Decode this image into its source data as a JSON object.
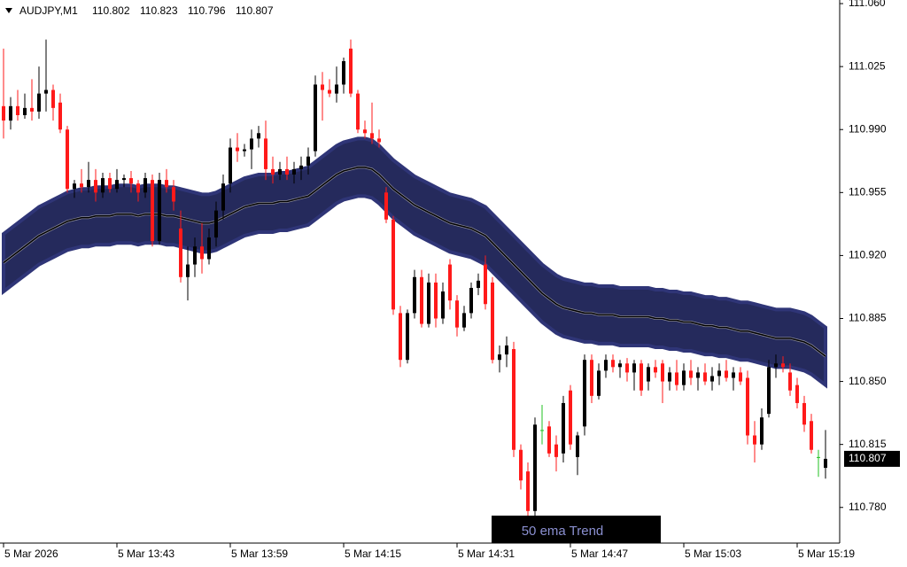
{
  "chart_data": {
    "type": "candlestick",
    "title": "AUDJPY,M1",
    "indicator_label": "50 ema Trend",
    "up_color": "#000000",
    "down_color": "#ff1a1a",
    "doji_color": "#22c022",
    "band_color": "#252a5c",
    "ylim": [
      110.772,
      111.062
    ],
    "yticks": [
      {
        "value": 111.06,
        "label": "111.060"
      },
      111.025,
      {
        "value": 110.99,
        "label": "110.990"
      },
      110.955,
      {
        "value": 110.92,
        "label": "110.920"
      },
      110.885,
      {
        "value": 110.85,
        "label": "110.850"
      },
      110.815,
      {
        "value": 110.78,
        "label": "110.780"
      }
    ],
    "categories": [
      "5 Mar 2026",
      null,
      null,
      null,
      null,
      null,
      null,
      null,
      null,
      null,
      null,
      null,
      null,
      null,
      null,
      null,
      "5 Mar 13:43",
      null,
      null,
      null,
      null,
      null,
      null,
      null,
      null,
      null,
      null,
      null,
      null,
      null,
      null,
      null,
      "5 Mar 13:59",
      null,
      null,
      null,
      null,
      null,
      null,
      null,
      null,
      null,
      null,
      null,
      null,
      null,
      null,
      null,
      "5 Mar 14:15",
      null,
      null,
      null,
      null,
      null,
      null,
      null,
      null,
      null,
      null,
      null,
      null,
      null,
      null,
      null,
      "5 Mar 14:31",
      null,
      null,
      null,
      null,
      null,
      null,
      null,
      null,
      null,
      null,
      null,
      null,
      null,
      null,
      null,
      "5 Mar 14:47",
      null,
      null,
      null,
      null,
      null,
      null,
      null,
      null,
      null,
      null,
      null,
      null,
      null,
      null,
      null,
      "5 Mar 15:03",
      null,
      null,
      null,
      null,
      null,
      null,
      null,
      null,
      null,
      null,
      null,
      null,
      null,
      null,
      null,
      "5 Mar 15:19",
      null,
      null,
      null,
      null
    ],
    "ohlc": [
      [
        111.003,
        111.035,
        110.985,
        110.995
      ],
      [
        110.995,
        111.008,
        110.99,
        111.003
      ],
      [
        111.003,
        111.012,
        110.995,
        110.998
      ],
      [
        110.998,
        111.01,
        110.996,
        111.002
      ],
      [
        111.002,
        111.018,
        110.995,
        111.0
      ],
      [
        111.0,
        111.025,
        110.996,
        111.01
      ],
      [
        111.01,
        111.04,
        111.0,
        111.012
      ],
      [
        111.012,
        111.015,
        110.995,
        111.002
      ],
      [
        111.005,
        111.01,
        110.988,
        110.99
      ],
      [
        110.99,
        110.992,
        110.955,
        110.957
      ],
      [
        110.957,
        110.962,
        110.952,
        110.96
      ],
      [
        110.96,
        110.968,
        110.955,
        110.958
      ],
      [
        110.958,
        110.972,
        110.955,
        110.962
      ],
      [
        110.962,
        110.968,
        110.95,
        110.955
      ],
      [
        110.955,
        110.966,
        110.952,
        110.963
      ],
      [
        110.963,
        110.966,
        110.955,
        110.957
      ],
      [
        110.957,
        110.968,
        110.955,
        110.962
      ],
      [
        110.962,
        110.965,
        110.958,
        110.963
      ],
      [
        110.963,
        110.967,
        110.955,
        110.96
      ],
      [
        110.96,
        110.962,
        110.95,
        110.955
      ],
      [
        110.955,
        110.966,
        110.952,
        110.963
      ],
      [
        110.962,
        110.965,
        110.925,
        110.928
      ],
      [
        110.928,
        110.966,
        110.926,
        110.962
      ],
      [
        110.962,
        110.968,
        110.955,
        110.958
      ],
      [
        110.958,
        110.962,
        110.945,
        110.95
      ],
      [
        110.935,
        110.945,
        110.905,
        110.908
      ],
      [
        110.908,
        110.925,
        110.895,
        110.915
      ],
      [
        110.915,
        110.93,
        110.908,
        110.925
      ],
      [
        110.925,
        110.938,
        110.91,
        110.918
      ],
      [
        110.918,
        110.935,
        110.915,
        110.93
      ],
      [
        110.93,
        110.95,
        110.925,
        110.945
      ],
      [
        110.945,
        110.965,
        110.94,
        110.96
      ],
      [
        110.96,
        110.985,
        110.955,
        110.98
      ],
      [
        110.98,
        110.988,
        110.972,
        110.978
      ],
      [
        110.978,
        110.982,
        110.975,
        110.979
      ],
      [
        110.979,
        110.99,
        110.968,
        110.985
      ],
      [
        110.985,
        110.992,
        110.98,
        110.988
      ],
      [
        110.985,
        110.995,
        110.962,
        110.968
      ],
      [
        110.968,
        110.975,
        110.96,
        110.965
      ],
      [
        110.965,
        110.972,
        110.962,
        110.968
      ],
      [
        110.968,
        110.975,
        110.962,
        110.965
      ],
      [
        110.965,
        110.972,
        110.96,
        110.968
      ],
      [
        110.968,
        110.975,
        110.962,
        110.97
      ],
      [
        110.97,
        110.98,
        110.965,
        110.975
      ],
      [
        110.978,
        111.02,
        110.975,
        111.015
      ],
      [
        111.015,
        111.022,
        110.995,
        111.012
      ],
      [
        111.012,
        111.018,
        111.008,
        111.01
      ],
      [
        111.01,
        111.025,
        111.005,
        111.015
      ],
      [
        111.015,
        111.03,
        111.01,
        111.028
      ],
      [
        111.035,
        111.04,
        111.008,
        111.01
      ],
      [
        111.01,
        111.012,
        110.988,
        110.99
      ],
      [
        110.99,
        110.995,
        110.985,
        110.988
      ],
      [
        110.988,
        111.005,
        110.982,
        110.985
      ],
      [
        110.985,
        110.99,
        110.98,
        110.983
      ],
      [
        110.955,
        110.958,
        110.938,
        110.94
      ],
      [
        110.94,
        110.942,
        110.887,
        110.89
      ],
      [
        110.888,
        110.892,
        110.858,
        110.862
      ],
      [
        110.862,
        110.89,
        110.86,
        110.888
      ],
      [
        110.888,
        110.912,
        110.885,
        110.908
      ],
      [
        110.908,
        110.912,
        110.88,
        110.882
      ],
      [
        110.882,
        110.91,
        110.88,
        110.905
      ],
      [
        110.905,
        110.91,
        110.88,
        110.885
      ],
      [
        110.885,
        110.905,
        110.882,
        110.9
      ],
      [
        110.915,
        110.918,
        110.89,
        110.895
      ],
      [
        110.895,
        110.898,
        110.875,
        110.88
      ],
      [
        110.88,
        110.892,
        110.878,
        110.888
      ],
      [
        110.888,
        110.905,
        110.885,
        110.902
      ],
      [
        110.902,
        110.91,
        110.898,
        110.906
      ],
      [
        110.915,
        110.92,
        110.89,
        110.893
      ],
      [
        110.905,
        110.908,
        110.86,
        110.862
      ],
      [
        110.862,
        110.87,
        110.855,
        110.865
      ],
      [
        110.865,
        110.875,
        110.858,
        110.87
      ],
      [
        110.868,
        110.872,
        110.808,
        110.812
      ],
      [
        110.812,
        110.815,
        110.79,
        110.795
      ],
      [
        110.8,
        110.805,
        110.775,
        110.778
      ],
      [
        110.778,
        110.83,
        110.775,
        110.826
      ],
      [
        110.823,
        110.837,
        110.815,
        110.823
      ],
      [
        110.825,
        110.828,
        110.808,
        110.81
      ],
      [
        110.815,
        110.82,
        110.8,
        110.808
      ],
      [
        110.81,
        110.842,
        110.805,
        110.838
      ],
      [
        110.845,
        110.848,
        110.812,
        110.815
      ],
      [
        110.808,
        110.822,
        110.798,
        110.82
      ],
      [
        110.825,
        110.865,
        110.82,
        110.862
      ],
      [
        110.862,
        110.865,
        110.838,
        110.842
      ],
      [
        110.842,
        110.86,
        110.84,
        110.856
      ],
      [
        110.856,
        110.865,
        110.852,
        110.862
      ],
      [
        110.862,
        110.865,
        110.855,
        110.858
      ],
      [
        110.858,
        110.862,
        110.852,
        110.86
      ],
      [
        110.86,
        110.863,
        110.85,
        110.855
      ],
      [
        110.855,
        110.862,
        110.845,
        110.86
      ],
      [
        110.86,
        110.862,
        110.842,
        110.845
      ],
      [
        110.85,
        110.86,
        110.845,
        110.858
      ],
      [
        110.858,
        110.862,
        110.852,
        110.855
      ],
      [
        110.86,
        110.862,
        110.838,
        110.85
      ],
      [
        110.85,
        110.858,
        110.845,
        110.855
      ],
      [
        110.855,
        110.862,
        110.845,
        110.848
      ],
      [
        110.848,
        110.86,
        110.845,
        110.856
      ],
      [
        110.856,
        110.862,
        110.848,
        110.852
      ],
      [
        110.852,
        110.858,
        110.845,
        110.855
      ],
      [
        110.855,
        110.86,
        110.848,
        110.85
      ],
      [
        110.85,
        110.858,
        110.845,
        110.853
      ],
      [
        110.853,
        110.86,
        110.848,
        110.856
      ],
      [
        110.856,
        110.862,
        110.85,
        110.852
      ],
      [
        110.852,
        110.858,
        110.845,
        110.855
      ],
      [
        110.855,
        110.858,
        110.848,
        110.85
      ],
      [
        110.852,
        110.856,
        110.815,
        110.82
      ],
      [
        110.82,
        110.828,
        110.805,
        110.815
      ],
      [
        110.815,
        110.835,
        110.812,
        110.83
      ],
      [
        110.832,
        110.862,
        110.83,
        110.858
      ],
      [
        110.858,
        110.865,
        110.852,
        110.86
      ],
      [
        110.86,
        110.864,
        110.855,
        110.858
      ],
      [
        110.855,
        110.86,
        110.842,
        110.845
      ],
      [
        110.848,
        110.852,
        110.835,
        110.838
      ],
      [
        110.838,
        110.842,
        110.822,
        110.826
      ],
      [
        110.828,
        110.832,
        110.81,
        110.812
      ],
      [
        110.808,
        110.812,
        110.797,
        110.808
      ],
      [
        110.802,
        110.823,
        110.796,
        110.807
      ]
    ],
    "ema": [
      110.916,
      110.919,
      110.922,
      110.925,
      110.928,
      110.931,
      110.933,
      110.935,
      110.937,
      110.939,
      110.94,
      110.941,
      110.941,
      110.942,
      110.942,
      110.942,
      110.943,
      110.943,
      110.943,
      110.942,
      110.943,
      110.943,
      110.943,
      110.942,
      110.942,
      110.941,
      110.94,
      110.939,
      110.938,
      110.938,
      110.939,
      110.941,
      110.943,
      110.945,
      110.947,
      110.948,
      110.949,
      110.949,
      110.949,
      110.95,
      110.95,
      110.951,
      110.952,
      110.953,
      110.956,
      110.959,
      110.962,
      110.965,
      110.967,
      110.968,
      110.969,
      110.969,
      110.968,
      110.965,
      110.961,
      110.957,
      110.954,
      110.951,
      110.948,
      110.946,
      110.944,
      110.942,
      110.94,
      110.938,
      110.937,
      110.936,
      110.935,
      110.933,
      110.931,
      110.927,
      110.923,
      110.919,
      110.915,
      110.911,
      110.907,
      110.903,
      110.899,
      110.896,
      110.893,
      110.891,
      110.89,
      110.889,
      110.888,
      110.888,
      110.887,
      110.887,
      110.887,
      110.886,
      110.886,
      110.886,
      110.886,
      110.886,
      110.885,
      110.885,
      110.884,
      110.884,
      110.883,
      110.883,
      110.882,
      110.881,
      110.881,
      110.88,
      110.88,
      110.879,
      110.878,
      110.878,
      110.877,
      110.876,
      110.875,
      110.874,
      110.874,
      110.874,
      110.873,
      110.872,
      110.87,
      110.867,
      110.864
    ],
    "band_offset": 0.016
  }
}
